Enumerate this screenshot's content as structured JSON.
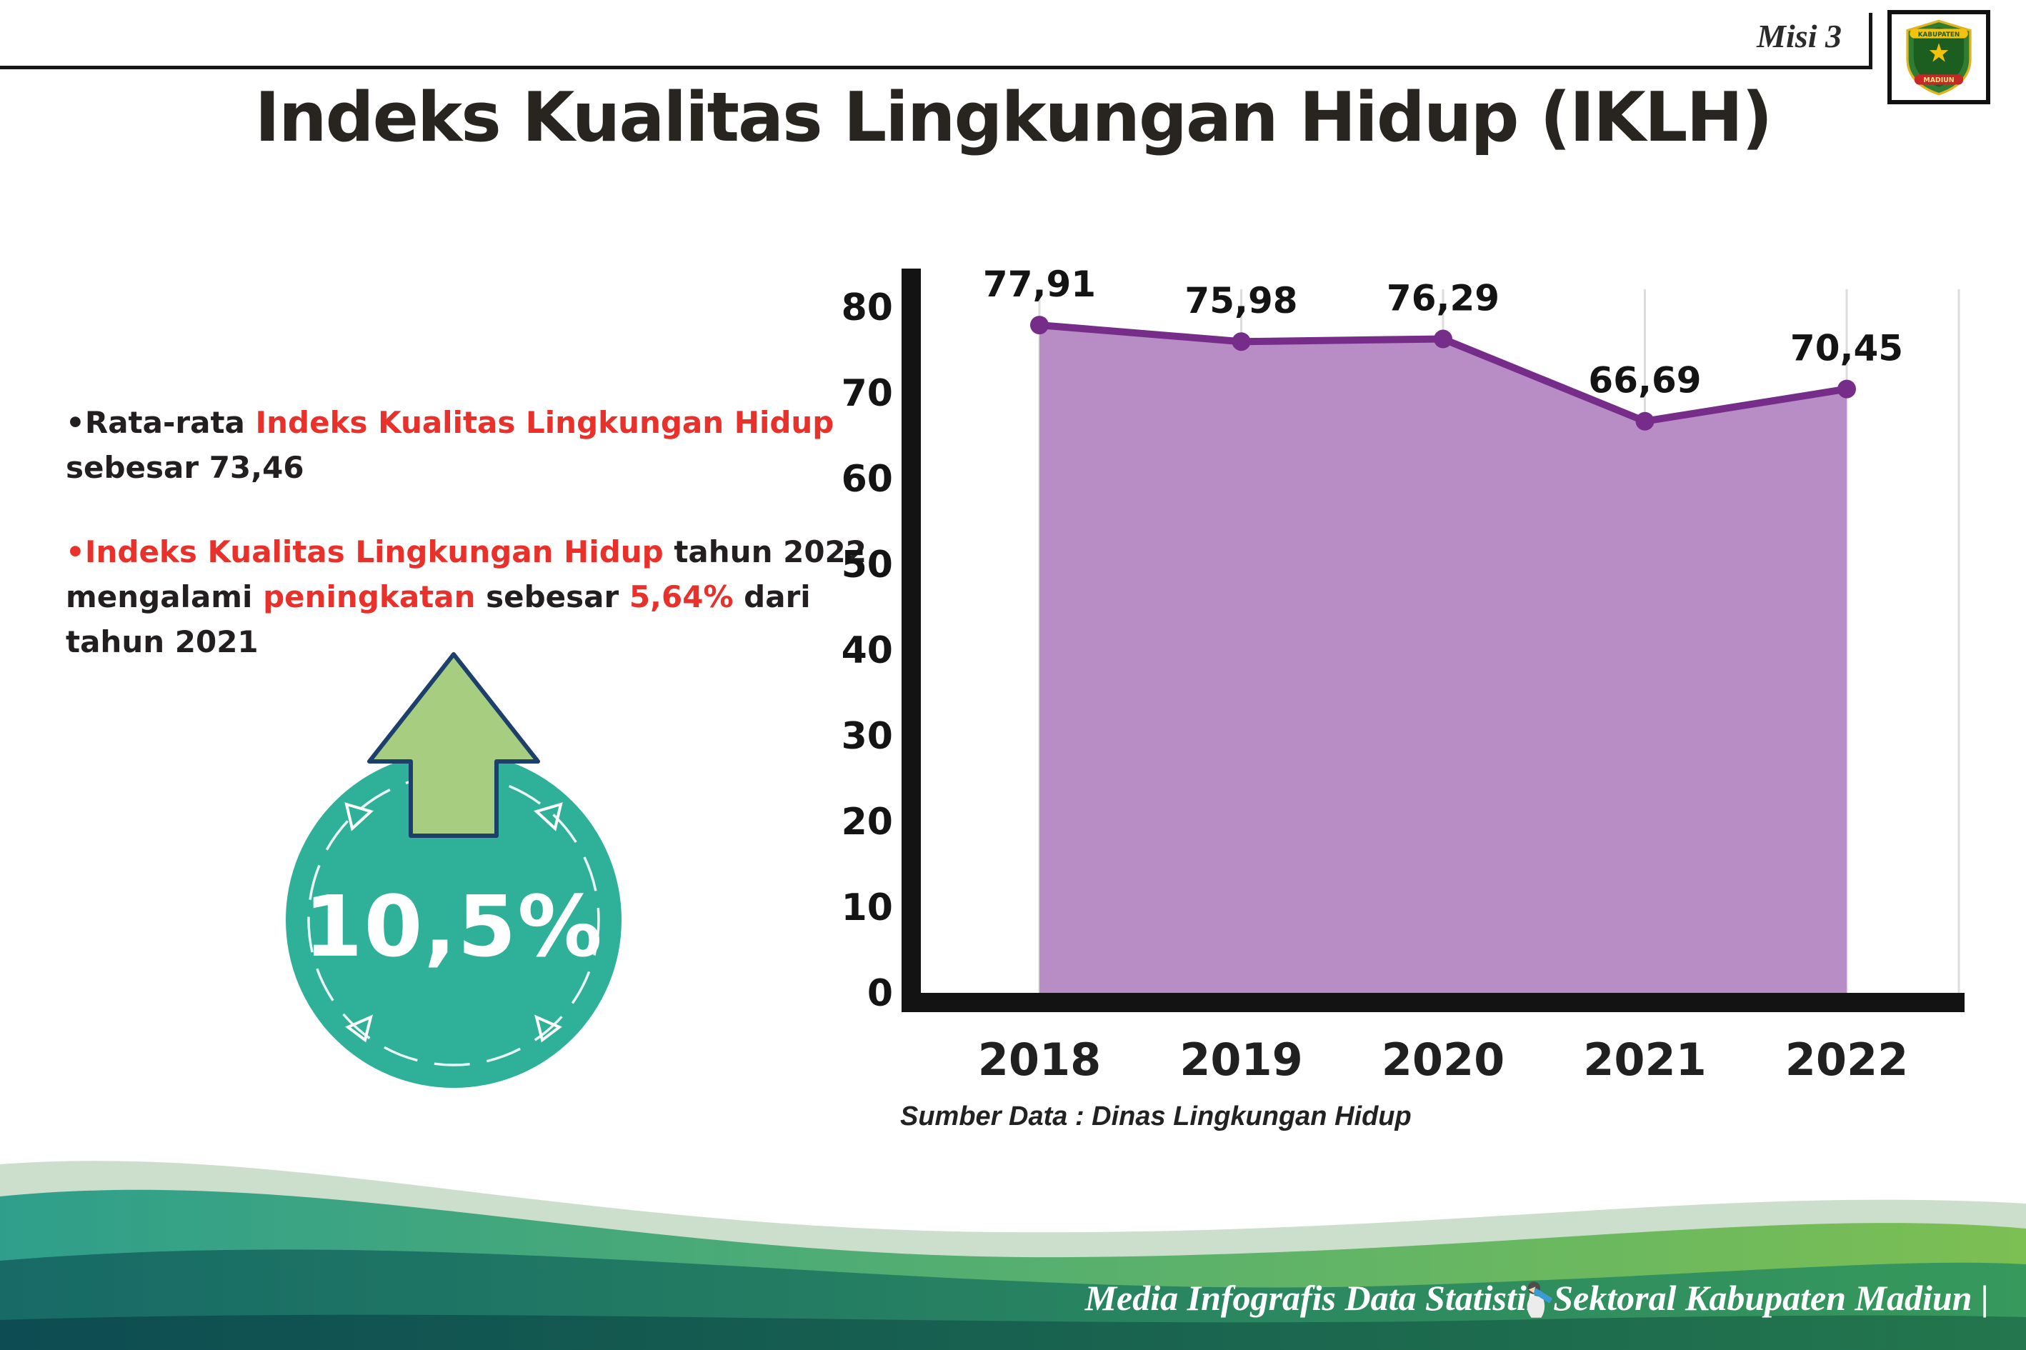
{
  "colors": {
    "red_text": "#e8312a",
    "dark_text": "#231f20",
    "teal_badge": "#2fb098",
    "arrow_green": "#a6cd80",
    "chart_line": "#762d8a",
    "chart_fill": "#b88cc4"
  },
  "header": {
    "misi_label": "Misi 3",
    "title": "Indeks Kualitas Lingkungan Hidup (IKLH)",
    "logo": {
      "top_text": "KABUPATEN",
      "bottom_text": "MADIUN"
    }
  },
  "bullets": {
    "marker": "•",
    "b1": [
      {
        "text": "Rata-rata "
      },
      {
        "text": "Indeks Kualitas Lingkungan Hidup"
      },
      {
        "text": " sebesar 73,46"
      }
    ],
    "b2": [
      {
        "text": "Indeks Kualitas Lingkungan Hidup"
      },
      {
        "text": " tahun 2022 mengalami "
      },
      {
        "text": "peningkatan"
      },
      {
        "text": " sebesar "
      },
      {
        "text": "5,64%"
      },
      {
        "text": " dari tahun 2021"
      }
    ]
  },
  "badge": {
    "value": "10,5%"
  },
  "chart_data": {
    "type": "area",
    "title": "Indeks Kualitas Lingkungan Hidup (IKLH)",
    "categories": [
      "2018",
      "2019",
      "2020",
      "2021",
      "2022"
    ],
    "series": [
      {
        "name": "IKLH",
        "values": [
          77.91,
          75.98,
          76.29,
          66.69,
          70.45
        ]
      }
    ],
    "data_labels": [
      "77,91",
      "75,98",
      "76,29",
      "66,69",
      "70,45"
    ],
    "ylim": [
      0,
      80
    ],
    "ytick_step": 10,
    "yticks": [
      "0",
      "10",
      "20",
      "30",
      "40",
      "50",
      "60",
      "70",
      "80"
    ],
    "grid": "vertical",
    "legend": "none",
    "line_color": "#762d8a",
    "fill_color": "#b88cc4",
    "source_note": "Sumber Data : Dinas Lingkungan Hidup"
  },
  "footer": {
    "caption": "Media Infografis Data Statistik Sektoral Kabupaten Madiun |"
  }
}
